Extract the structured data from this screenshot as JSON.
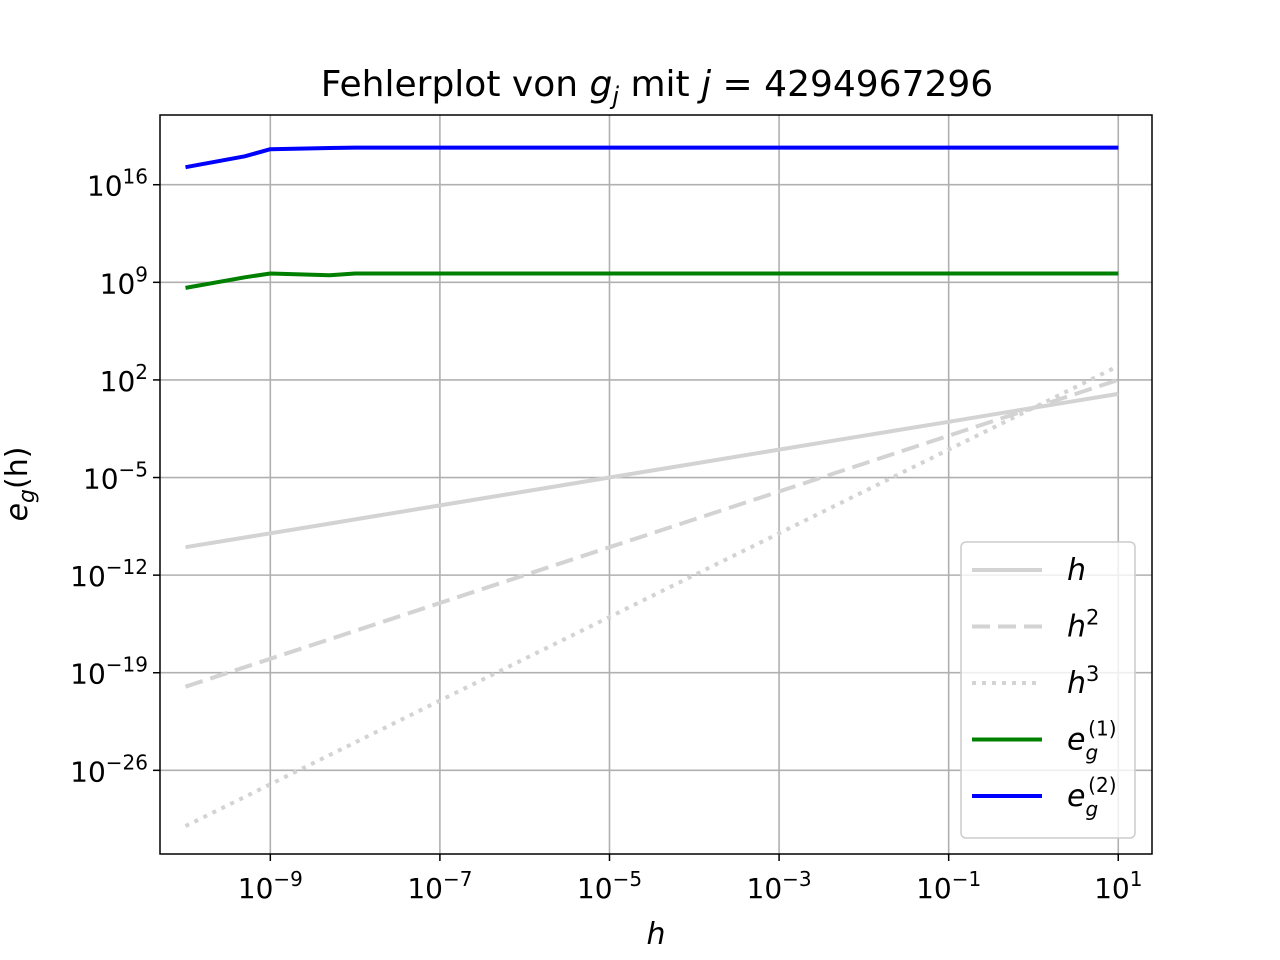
{
  "chart_data": {
    "type": "line",
    "title_parts": [
      "Fehlerplot von ",
      "g",
      "j",
      " mit ",
      "j",
      " = 4294967296"
    ],
    "xlabel": "h",
    "ylabel_parts": [
      "e",
      "g",
      "(h)"
    ],
    "xscale": "log",
    "yscale": "log",
    "xlim": [
      5e-11,
      25
    ],
    "ylim": [
      1e-32,
      1e+21
    ],
    "grid": true,
    "legend_position": "lower-right",
    "x_ticks": [
      {
        "base": "10",
        "exp": "−9",
        "value": 1e-09
      },
      {
        "base": "10",
        "exp": "−7",
        "value": 1e-07
      },
      {
        "base": "10",
        "exp": "−5",
        "value": 1e-05
      },
      {
        "base": "10",
        "exp": "−3",
        "value": 0.001
      },
      {
        "base": "10",
        "exp": "−1",
        "value": 0.1
      },
      {
        "base": "10",
        "exp": "1",
        "value": 10
      }
    ],
    "y_ticks": [
      {
        "base": "10",
        "exp": "16",
        "value": 1e+16
      },
      {
        "base": "10",
        "exp": "9",
        "value": 1000000000.0
      },
      {
        "base": "10",
        "exp": "2",
        "value": 100.0
      },
      {
        "base": "10",
        "exp": "−5",
        "value": 1e-05
      },
      {
        "base": "10",
        "exp": "−12",
        "value": 1e-12
      },
      {
        "base": "10",
        "exp": "−19",
        "value": 1e-19
      },
      {
        "base": "10",
        "exp": "−26",
        "value": 1e-26
      }
    ],
    "x": [
      1e-10,
      5e-10,
      1e-09,
      5e-09,
      1e-08,
      1e-07,
      1e-06,
      1e-05,
      0.0001,
      0.001,
      0.01,
      0.1,
      1,
      10
    ],
    "series": [
      {
        "name": "h",
        "name_sup": "",
        "name_sub": "",
        "color": "#d3d3d3",
        "dash": "solid",
        "values": [
          1e-10,
          5e-10,
          1e-09,
          5e-09,
          1e-08,
          1e-07,
          1e-06,
          1e-05,
          0.0001,
          0.001,
          0.01,
          0.1,
          1,
          10
        ]
      },
      {
        "name": "h",
        "name_sup": "2",
        "name_sub": "",
        "color": "#d3d3d3",
        "dash": "dashed",
        "values": [
          1e-20,
          2.5e-19,
          1e-18,
          2.5e-17,
          1e-16,
          1e-14,
          1e-12,
          1e-10,
          1e-08,
          1e-06,
          0.0001,
          0.01,
          1,
          100
        ]
      },
      {
        "name": "h",
        "name_sup": "3",
        "name_sub": "",
        "color": "#d3d3d3",
        "dash": "dotted",
        "values": [
          1e-30,
          1.25e-28,
          1e-27,
          1.25e-25,
          1e-24,
          1e-21,
          1e-18,
          1e-15,
          1e-12,
          1e-09,
          1e-06,
          0.001,
          1,
          1000
        ]
      },
      {
        "name": "e",
        "name_sup": "(1)",
        "name_sub": "g",
        "color": "#008000",
        "dash": "solid",
        "values": [
          400000000.0,
          2300000000.0,
          4300000000.0,
          3200000000.0,
          4290000000.0,
          4290000000.0,
          4290000000.0,
          4290000000.0,
          4290000000.0,
          4290000000.0,
          4290000000.0,
          4290000000.0,
          4290000000.0,
          4290000000.0
        ]
      },
      {
        "name": "e",
        "name_sup": "(2)",
        "name_sub": "g",
        "color": "#0000ff",
        "dash": "solid",
        "values": [
          1.8e+17,
          1.1e+18,
          3.5e+18,
          4.3e+18,
          4.6e+18,
          4.6e+18,
          4.6e+18,
          4.6e+18,
          4.6e+18,
          4.6e+18,
          4.6e+18,
          4.6e+18,
          4.6e+18,
          4.6e+18
        ]
      }
    ]
  }
}
